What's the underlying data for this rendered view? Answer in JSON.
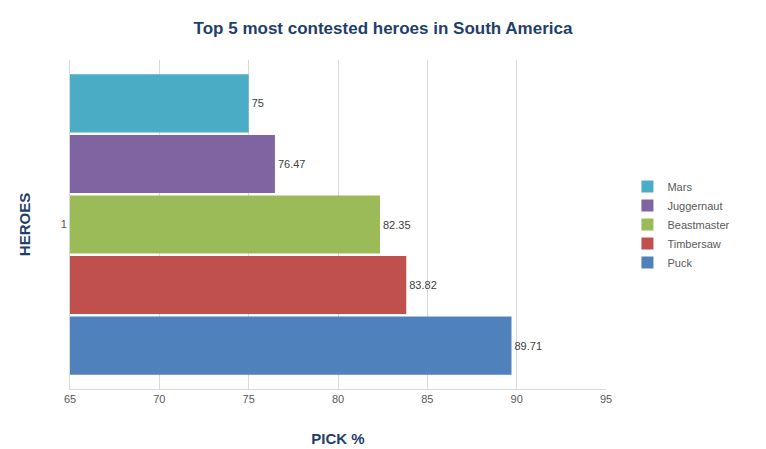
{
  "chart_data": {
    "type": "bar",
    "orientation": "horizontal",
    "title": "Top 5 most contested heroes in South America",
    "x_label": "PICK %",
    "y_label": "HEROES",
    "categories": [
      "1"
    ],
    "series": [
      {
        "name": "Mars",
        "color": "#4bacc6",
        "values": [
          75
        ]
      },
      {
        "name": "Juggernaut",
        "color": "#8064a2",
        "values": [
          76.47
        ]
      },
      {
        "name": "Beastmaster",
        "color": "#9bbb59",
        "values": [
          82.35
        ]
      },
      {
        "name": "Timbersaw",
        "color": "#c0504d",
        "values": [
          83.82
        ]
      },
      {
        "name": "Puck",
        "color": "#4f81bd",
        "values": [
          89.71
        ]
      }
    ],
    "xlim": [
      65,
      95
    ],
    "xticks": [
      65,
      70,
      75,
      80,
      85,
      90,
      95
    ],
    "grid": true,
    "legend": "right",
    "data_labels": true
  }
}
